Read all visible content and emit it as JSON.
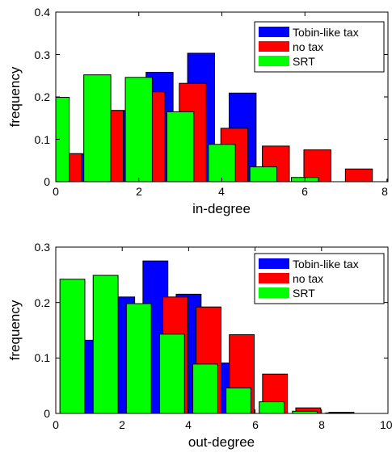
{
  "colors": {
    "tobin": "#0000ff",
    "notax": "#ff0000",
    "srt": "#00ff00",
    "edge": "#000000"
  },
  "chart_data": [
    {
      "type": "bar",
      "xlabel": "in-degree",
      "ylabel": "frequency",
      "xlim": [
        0,
        8
      ],
      "ylim": [
        0,
        0.4
      ],
      "xticks": [
        0,
        2,
        4,
        6,
        8
      ],
      "yticks": [
        0,
        0.1,
        0.2,
        0.3,
        0.4
      ],
      "tick_labels_x": [
        "0",
        "2",
        "4",
        "6",
        "8"
      ],
      "tick_labels_y": [
        "0",
        "0.1",
        "0.2",
        "0.3",
        "0.4"
      ],
      "legend": {
        "position": "top-right",
        "entries": [
          "Tobin-like tax",
          "no tax",
          "SRT"
        ]
      },
      "series": [
        {
          "name": "Tobin-like tax",
          "color_key": "tobin",
          "points": [
            {
              "x": 0.5,
              "y": 0.066
            },
            {
              "x": 1.5,
              "y": 0.168
            },
            {
              "x": 2.5,
              "y": 0.258
            },
            {
              "x": 3.5,
              "y": 0.303
            },
            {
              "x": 4.5,
              "y": 0.209
            },
            {
              "x": 5.5,
              "y": 0.0
            },
            {
              "x": 6.5,
              "y": 0.0
            },
            {
              "x": 7.5,
              "y": 0.0
            },
            {
              "x": 8.5,
              "y": 0.0
            }
          ]
        },
        {
          "name": "no tax",
          "color_key": "notax",
          "points": [
            {
              "x": 0.3,
              "y": 0.066
            },
            {
              "x": 1.3,
              "y": 0.168
            },
            {
              "x": 2.3,
              "y": 0.212
            },
            {
              "x": 3.3,
              "y": 0.232
            },
            {
              "x": 4.3,
              "y": 0.126
            },
            {
              "x": 5.3,
              "y": 0.084
            },
            {
              "x": 6.3,
              "y": 0.075
            },
            {
              "x": 7.3,
              "y": 0.03
            },
            {
              "x": 8.3,
              "y": 0.006
            }
          ]
        },
        {
          "name": "SRT",
          "color_key": "srt",
          "points": [
            {
              "x": 0.0,
              "y": 0.199
            },
            {
              "x": 1.0,
              "y": 0.252
            },
            {
              "x": 2.0,
              "y": 0.246
            },
            {
              "x": 3.0,
              "y": 0.165
            },
            {
              "x": 4.0,
              "y": 0.088
            },
            {
              "x": 5.0,
              "y": 0.035
            },
            {
              "x": 6.0,
              "y": 0.01
            }
          ]
        }
      ]
    },
    {
      "type": "bar",
      "xlabel": "out-degree",
      "ylabel": "frequency",
      "xlim": [
        0,
        10
      ],
      "ylim": [
        0,
        0.3
      ],
      "xticks": [
        0,
        2,
        4,
        6,
        8,
        10
      ],
      "yticks": [
        0,
        0.1,
        0.2,
        0.3
      ],
      "tick_labels_x": [
        "0",
        "2",
        "4",
        "6",
        "8",
        "10"
      ],
      "tick_labels_y": [
        "0",
        "0.1",
        "0.2",
        "0.3"
      ],
      "legend": {
        "position": "top-right",
        "entries": [
          "Tobin-like tax",
          "no tax",
          "SRT"
        ]
      },
      "series": [
        {
          "name": "Tobin-like tax",
          "color_key": "tobin",
          "points": [
            {
              "x": 1.0,
              "y": 0.132
            },
            {
              "x": 2.0,
              "y": 0.21
            },
            {
              "x": 3.0,
              "y": 0.275
            },
            {
              "x": 4.0,
              "y": 0.215
            },
            {
              "x": 5.0,
              "y": 0.091
            },
            {
              "x": 6.0,
              "y": 0.0
            },
            {
              "x": 7.0,
              "y": 0.0
            },
            {
              "x": 8.0,
              "y": 0.0
            },
            {
              "x": 9.0,
              "y": 0.0
            }
          ]
        },
        {
          "name": "no tax",
          "color_key": "notax",
          "points": [
            {
              "x": 0.6,
              "y": 0.0
            },
            {
              "x": 1.6,
              "y": 0.0
            },
            {
              "x": 2.6,
              "y": 0.0
            },
            {
              "x": 3.6,
              "y": 0.21
            },
            {
              "x": 4.6,
              "y": 0.192
            },
            {
              "x": 5.6,
              "y": 0.142
            },
            {
              "x": 6.6,
              "y": 0.071
            },
            {
              "x": 7.6,
              "y": 0.01
            },
            {
              "x": 8.6,
              "y": 0.002
            }
          ]
        },
        {
          "name": "SRT",
          "color_key": "srt",
          "points": [
            {
              "x": 0.5,
              "y": 0.242
            },
            {
              "x": 1.5,
              "y": 0.249
            },
            {
              "x": 2.5,
              "y": 0.198
            },
            {
              "x": 3.5,
              "y": 0.143
            },
            {
              "x": 4.5,
              "y": 0.089
            },
            {
              "x": 5.5,
              "y": 0.046
            },
            {
              "x": 6.5,
              "y": 0.021
            },
            {
              "x": 7.5,
              "y": 0.004
            },
            {
              "x": 8.5,
              "y": 0.001
            }
          ]
        }
      ]
    }
  ]
}
